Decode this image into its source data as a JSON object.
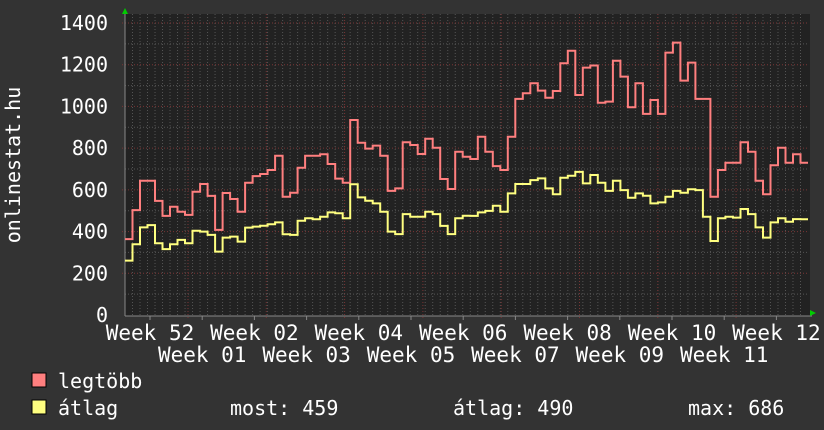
{
  "chart_data": {
    "type": "line",
    "title": "",
    "ylabel": "onlinestat.hu",
    "xlabel": "",
    "ylim": [
      0,
      1400
    ],
    "y_ticks": [
      "0",
      "200",
      "400",
      "600",
      "800",
      "1000",
      "1200",
      "1400"
    ],
    "x_tick_labels": [
      "Week 52",
      "Week 01",
      "Week 02",
      "Week 03",
      "Week 04",
      "Week 05",
      "Week 06",
      "Week 07",
      "Week 08",
      "Week 09",
      "Week 10",
      "Week 11",
      "Week 12"
    ],
    "grid": true,
    "step": true,
    "series": [
      {
        "name": "legtöbb",
        "color": "#ff7f7f",
        "values": [
          364,
          503,
          644,
          644,
          547,
          475,
          519,
          495,
          480,
          591,
          628,
          571,
          408,
          585,
          556,
          495,
          634,
          666,
          676,
          695,
          764,
          567,
          586,
          706,
          764,
          764,
          771,
          724,
          654,
          634,
          935,
          826,
          798,
          812,
          764,
          595,
          607,
          828,
          815,
          772,
          845,
          802,
          652,
          604,
          783,
          759,
          748,
          855,
          783,
          714,
          695,
          855,
          1036,
          1063,
          1111,
          1076,
          1042,
          1074,
          1207,
          1267,
          1055,
          1186,
          1196,
          1018,
          1023,
          1219,
          1143,
          996,
          1111,
          964,
          1031,
          964,
          1258,
          1306,
          1124,
          1210,
          1036,
          1036,
          567,
          695,
          730,
          730,
          828,
          783,
          644,
          579,
          718,
          802,
          730,
          771,
          730
        ]
      },
      {
        "name": "átlag",
        "color": "#ffff80",
        "values": [
          261,
          339,
          420,
          431,
          344,
          316,
          339,
          360,
          344,
          404,
          400,
          384,
          304,
          371,
          376,
          352,
          419,
          424,
          428,
          435,
          444,
          387,
          384,
          452,
          464,
          459,
          471,
          492,
          488,
          464,
          627,
          564,
          548,
          535,
          495,
          400,
          388,
          484,
          471,
          471,
          495,
          484,
          427,
          388,
          464,
          476,
          475,
          492,
          499,
          524,
          495,
          583,
          628,
          628,
          647,
          655,
          607,
          579,
          658,
          668,
          686,
          631,
          671,
          634,
          595,
          644,
          599,
          562,
          583,
          572,
          535,
          540,
          567,
          595,
          586,
          603,
          599,
          471,
          355,
          464,
          471,
          467,
          508,
          484,
          420,
          371,
          444,
          464,
          447,
          460,
          459
        ]
      }
    ],
    "legend_placement": "bottom-left",
    "stats": {
      "most_label": "most: 459",
      "atlag_label": "átlag: 490",
      "max_label": "max: 686"
    }
  },
  "colors": {
    "background": "#333333",
    "plot_background": "#222222",
    "grid_minor": "#555555",
    "grid_major": "#7a3535",
    "axis_arrow": "#00cc00"
  }
}
